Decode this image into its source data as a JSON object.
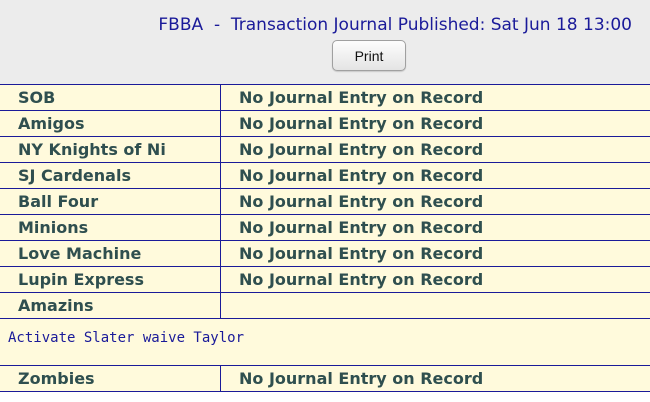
{
  "header": {
    "title": "FBBA  -  Transaction Journal Published: Sat Jun 18 13:00",
    "print_label": "Print"
  },
  "rows": [
    {
      "team": "SOB",
      "entry": "No Journal Entry on Record"
    },
    {
      "team": "Amigos",
      "entry": "No Journal Entry on Record"
    },
    {
      "team": "NY Knights of Ni",
      "entry": "No Journal Entry on Record"
    },
    {
      "team": "SJ Cardenals",
      "entry": "No Journal Entry on Record"
    },
    {
      "team": "Ball Four",
      "entry": "No Journal Entry on Record"
    },
    {
      "team": "Minions",
      "entry": "No Journal Entry on Record"
    },
    {
      "team": "Love Machine",
      "entry": "No Journal Entry on Record"
    },
    {
      "team": "Lupin Express",
      "entry": "No Journal Entry on Record"
    },
    {
      "team": "Amazins",
      "entry": "",
      "note": "Activate Slater waive Taylor"
    },
    {
      "team": "Zombies",
      "entry": "No Journal Entry on Record"
    }
  ],
  "colors": {
    "header_bg": "#ececec",
    "row_bg": "#fffadc",
    "border": "#1a1a99",
    "title_text": "#1a1a99",
    "team_text": "#2f4f4f"
  }
}
